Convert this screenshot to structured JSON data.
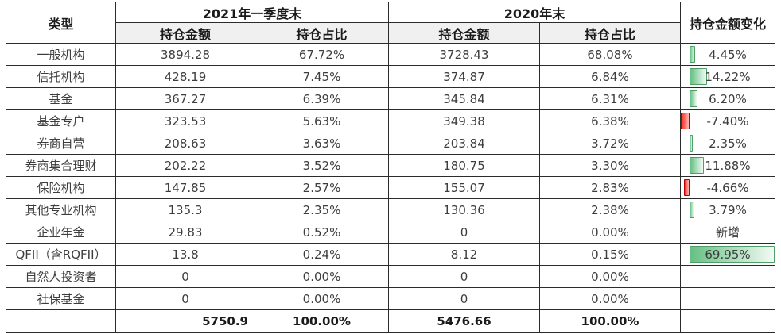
{
  "chart_data": {
    "type": "table",
    "header": {
      "type_label": "类型",
      "group_2021": "2021年一季度末",
      "group_2020": "2020年末",
      "amount_label": "持仓金额",
      "ratio_label": "持仓占比",
      "change_label": "持仓金额变化"
    },
    "rows": [
      {
        "type": "一般机构",
        "amt_2021": "3894.28",
        "pct_2021": "67.72%",
        "amt_2020": "3728.43",
        "pct_2020": "68.08%",
        "change": "4.45%",
        "change_value": 4.45
      },
      {
        "type": "信托机构",
        "amt_2021": "428.19",
        "pct_2021": "7.45%",
        "amt_2020": "374.87",
        "pct_2020": "6.84%",
        "change": "14.22%",
        "change_value": 14.22
      },
      {
        "type": "基金",
        "amt_2021": "367.27",
        "pct_2021": "6.39%",
        "amt_2020": "345.84",
        "pct_2020": "6.31%",
        "change": "6.20%",
        "change_value": 6.2
      },
      {
        "type": "基金专户",
        "amt_2021": "323.53",
        "pct_2021": "5.63%",
        "amt_2020": "349.38",
        "pct_2020": "6.38%",
        "change": "-7.40%",
        "change_value": -7.4
      },
      {
        "type": "券商自营",
        "amt_2021": "208.63",
        "pct_2021": "3.63%",
        "amt_2020": "203.84",
        "pct_2020": "3.72%",
        "change": "2.35%",
        "change_value": 2.35
      },
      {
        "type": "券商集合理财",
        "amt_2021": "202.22",
        "pct_2021": "3.52%",
        "amt_2020": "180.75",
        "pct_2020": "3.30%",
        "change": "11.88%",
        "change_value": 11.88
      },
      {
        "type": "保险机构",
        "amt_2021": "147.85",
        "pct_2021": "2.57%",
        "amt_2020": "155.07",
        "pct_2020": "2.83%",
        "change": "-4.66%",
        "change_value": -4.66
      },
      {
        "type": "其他专业机构",
        "amt_2021": "135.3",
        "pct_2021": "2.35%",
        "amt_2020": "130.36",
        "pct_2020": "2.38%",
        "change": "3.79%",
        "change_value": 3.79
      },
      {
        "type": "企业年金",
        "amt_2021": "29.83",
        "pct_2021": "0.52%",
        "amt_2020": "0",
        "pct_2020": "0.00%",
        "change": "新增",
        "change_value": null
      },
      {
        "type": "QFII（含RQFII）",
        "amt_2021": "13.8",
        "pct_2021": "0.24%",
        "amt_2020": "8.12",
        "pct_2020": "0.15%",
        "change": "69.95%",
        "change_value": 69.95
      },
      {
        "type": "自然人投资者",
        "amt_2021": "0",
        "pct_2021": "0.00%",
        "amt_2020": "0",
        "pct_2020": "0.00%",
        "change": "",
        "change_value": null
      },
      {
        "type": "社保基金",
        "amt_2021": "0",
        "pct_2021": "0.00%",
        "amt_2020": "0",
        "pct_2020": "0.00%",
        "change": "",
        "change_value": null
      }
    ],
    "total": {
      "type": "",
      "amt_2021": "5750.9",
      "pct_2021": "100.00%",
      "amt_2020": "5476.66",
      "pct_2020": "100.00%",
      "change": ""
    },
    "databar": {
      "min": -7.4,
      "max": 69.95,
      "positive_fill": "#66c083",
      "positive_border": "#4f9e67",
      "negative_fill": "#ff2a22",
      "negative_border": "#b80000",
      "axis_color": "#333333"
    },
    "layout": {
      "grid": "on",
      "header_fill": "#f0f0f0"
    }
  }
}
